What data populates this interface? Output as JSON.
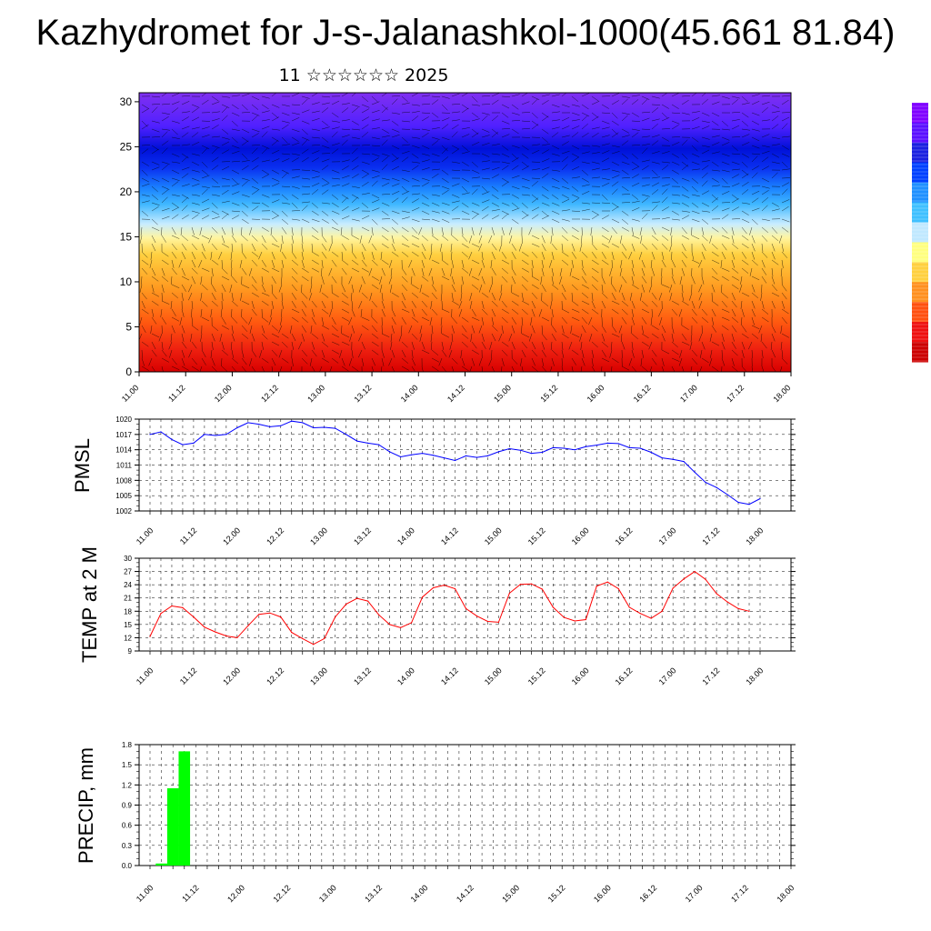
{
  "title": "Kazhydromet for J-s-Jalanashkol-1000(45.661 81.84)",
  "subtitle": "11 ☆☆☆☆☆☆ 2025",
  "colors": {
    "pmsl_line": "#0000ff",
    "temp_line": "#ff0000",
    "precip_bar": "#00ff00",
    "grid": "#000000"
  },
  "chart_data": [
    {
      "id": "cross_section",
      "type": "heatmap",
      "x_ticks": [
        "11.00",
        "11.12",
        "12.00",
        "12.12",
        "13.00",
        "13.12",
        "14.00",
        "14.12",
        "15.00",
        "15.12",
        "16.00",
        "16.12",
        "17.00",
        "17.12",
        "18.00"
      ],
      "y_ticks": [
        0,
        5,
        10,
        15,
        20,
        25,
        30
      ],
      "ylim": [
        0,
        31
      ],
      "colorbar": [
        "#7f00ff",
        "#5a10ff",
        "#1a20e0",
        "#0040ff",
        "#2090ff",
        "#40c0ff",
        "#c0e8ff",
        "#ffff80",
        "#ffd040",
        "#ff9020",
        "#ff5010",
        "#ee1010",
        "#cc0000"
      ],
      "overlay": "wind barbs"
    },
    {
      "id": "pmsl",
      "type": "line",
      "ylabel": "PMSL",
      "x_ticks": [
        "11.00",
        "11.12",
        "12.00",
        "12.12",
        "13.00",
        "13.12",
        "14.00",
        "14.12",
        "15.00",
        "15.12",
        "16.00",
        "16.12",
        "17.00",
        "17.12",
        "18.00"
      ],
      "y_ticks": [
        1002,
        1005,
        1008,
        1011,
        1014,
        1017,
        1020
      ],
      "ylim": [
        1002,
        1020
      ],
      "values": [
        1017,
        1017.5,
        1016,
        1015,
        1015.3,
        1017,
        1016.8,
        1017,
        1018.3,
        1019.3,
        1019,
        1018.5,
        1018.7,
        1019.6,
        1019.3,
        1018.3,
        1018.4,
        1018.2,
        1017,
        1015.7,
        1015.3,
        1015,
        1013.6,
        1012.6,
        1013,
        1013.3,
        1012.9,
        1012.4,
        1011.9,
        1012.8,
        1012.5,
        1012.8,
        1013.6,
        1014.2,
        1013.9,
        1013.3,
        1013.5,
        1014.4,
        1014.3,
        1014,
        1014.6,
        1014.9,
        1015.3,
        1015.2,
        1014.4,
        1014.3,
        1013.5,
        1012.4,
        1012.1,
        1011.7,
        1009.6,
        1007.6,
        1006.6,
        1005.2,
        1003.7,
        1003.3,
        1004.4
      ]
    },
    {
      "id": "temp",
      "type": "line",
      "ylabel": "TEMP at 2 M",
      "x_ticks": [
        "11.00",
        "11.12",
        "12.00",
        "12.12",
        "13.00",
        "13.12",
        "14.00",
        "14.12",
        "15.00",
        "15.12",
        "16.00",
        "16.12",
        "17.00",
        "17.12",
        "18.00"
      ],
      "y_ticks": [
        9,
        12,
        15,
        18,
        21,
        24,
        27,
        30
      ],
      "ylim": [
        9,
        30
      ],
      "values": [
        12.3,
        17.5,
        19.2,
        18.8,
        16.7,
        14.4,
        13.3,
        12.4,
        12,
        14.7,
        17.3,
        17.6,
        16.7,
        13.2,
        11.8,
        10.5,
        11.8,
        16.7,
        19.6,
        20.9,
        20.3,
        17.2,
        15,
        14.3,
        15.4,
        21.2,
        23.3,
        23.9,
        23.1,
        18.6,
        16.9,
        15.7,
        15.5,
        22.1,
        24.1,
        24.2,
        23,
        18.9,
        16.6,
        15.8,
        16.1,
        23.7,
        24.6,
        23.1,
        18.9,
        17.5,
        16.4,
        18,
        23.2,
        25.3,
        27,
        25.2,
        22,
        20.1,
        18.6,
        18
      ]
    },
    {
      "id": "precip",
      "type": "bar",
      "ylabel": "PRECIP, mm",
      "x_ticks": [
        "11.00",
        "11.12",
        "12.00",
        "12.12",
        "13.00",
        "13.12",
        "14.00",
        "14.12",
        "15.00",
        "15.12",
        "16.00",
        "16.12",
        "17.00",
        "17.12",
        "18.00"
      ],
      "y_ticks": [
        "0.0",
        "0.3",
        "0.6",
        "0.9",
        "1.2",
        "1.5",
        "1.8"
      ],
      "ylim": [
        0,
        1.8
      ],
      "values": [
        0.03,
        1.15,
        1.7
      ]
    }
  ]
}
